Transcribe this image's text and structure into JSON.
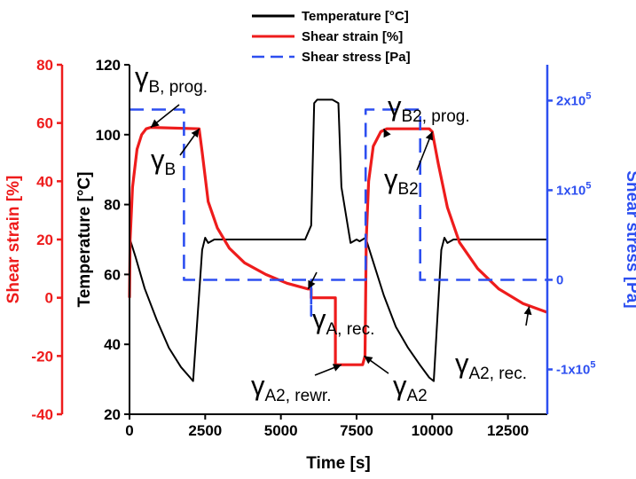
{
  "chart_data": {
    "type": "line",
    "title": "",
    "xlabel": "Time [s]",
    "x_ticks": [
      "0",
      "2500",
      "5000",
      "7500",
      "10000",
      "12500"
    ],
    "xlim": [
      0,
      13800
    ],
    "axes": {
      "temperature": {
        "label": "Temperature [°C]",
        "ticks": [
          "20",
          "40",
          "60",
          "80",
          "100",
          "120"
        ],
        "range": [
          20,
          120
        ],
        "color": "#000000"
      },
      "strain": {
        "label": "Shear strain [%]",
        "ticks": [
          "-40",
          "-20",
          "0",
          "20",
          "40",
          "60",
          "80"
        ],
        "range": [
          -40,
          80
        ],
        "color": "#ee1c1c"
      },
      "stress": {
        "label": "Shear stress [Pa]",
        "ticks": [
          "-1x10",
          "0",
          "1x10",
          "2x10"
        ],
        "tick_exponent": "5",
        "tick_values": [
          -100000,
          0,
          100000,
          200000
        ],
        "range": [
          -150000,
          240000
        ],
        "color": "#2d4ff0"
      }
    },
    "series": [
      {
        "name": "Temperature [°C]",
        "axis": "temperature",
        "color": "#000000",
        "dash": "solid",
        "points": [
          [
            0,
            70.5
          ],
          [
            200,
            65
          ],
          [
            500,
            56
          ],
          [
            900,
            47
          ],
          [
            1300,
            39
          ],
          [
            1700,
            33.5
          ],
          [
            2000,
            30.5
          ],
          [
            2100,
            29.5
          ],
          [
            2400,
            67
          ],
          [
            2500,
            70.5
          ],
          [
            2600,
            69
          ],
          [
            2800,
            70
          ],
          [
            5800,
            70
          ],
          [
            6000,
            74
          ],
          [
            6100,
            109
          ],
          [
            6200,
            110
          ],
          [
            6700,
            110
          ],
          [
            6900,
            109
          ],
          [
            7000,
            85
          ],
          [
            7300,
            69
          ],
          [
            7500,
            70
          ],
          [
            7600,
            69.5
          ],
          [
            7800,
            70.5
          ],
          [
            8000,
            65
          ],
          [
            8400,
            54
          ],
          [
            8800,
            45
          ],
          [
            9200,
            39
          ],
          [
            9600,
            34
          ],
          [
            9900,
            30.5
          ],
          [
            10050,
            29.5
          ],
          [
            10300,
            67
          ],
          [
            10400,
            70.5
          ],
          [
            10500,
            69
          ],
          [
            10700,
            70
          ],
          [
            13800,
            70
          ]
        ]
      },
      {
        "name": "Shear strain [%]",
        "axis": "strain",
        "color": "#ee1c1c",
        "dash": "solid",
        "points": [
          [
            0,
            0
          ],
          [
            20,
            20
          ],
          [
            100,
            38
          ],
          [
            250,
            51
          ],
          [
            400,
            56
          ],
          [
            550,
            58
          ],
          [
            700,
            58.5
          ],
          [
            2300,
            58
          ],
          [
            2400,
            50
          ],
          [
            2600,
            33
          ],
          [
            2900,
            24
          ],
          [
            3300,
            17
          ],
          [
            3800,
            12
          ],
          [
            4500,
            8
          ],
          [
            5200,
            5
          ],
          [
            5900,
            3
          ],
          [
            6000,
            3
          ],
          [
            6000,
            0
          ],
          [
            6800,
            0
          ],
          [
            6800,
            -23
          ],
          [
            7700,
            -23
          ],
          [
            7780,
            -20
          ],
          [
            7820,
            20
          ],
          [
            7900,
            40
          ],
          [
            8050,
            52
          ],
          [
            8300,
            57
          ],
          [
            8500,
            58
          ],
          [
            9900,
            58
          ],
          [
            10000,
            57
          ],
          [
            10200,
            46
          ],
          [
            10500,
            31
          ],
          [
            10900,
            19
          ],
          [
            11500,
            10
          ],
          [
            12200,
            3
          ],
          [
            13000,
            -2
          ],
          [
            13800,
            -5
          ]
        ]
      },
      {
        "name": "Shear stress [Pa]",
        "axis": "stress",
        "color": "#2d4ff0",
        "dash": "dashed",
        "points": [
          [
            0,
            190000
          ],
          [
            1800,
            190000
          ],
          [
            1800,
            0
          ],
          [
            6000,
            0
          ],
          [
            6000,
            -40000
          ],
          [
            6000,
            0
          ],
          [
            7800,
            0
          ],
          [
            7800,
            190000
          ],
          [
            9600,
            190000
          ],
          [
            9600,
            0
          ],
          [
            13800,
            0
          ]
        ]
      }
    ],
    "legend": {
      "placement": "top-center",
      "entries": [
        {
          "label": "Temperature [°C]",
          "color": "#000000",
          "dash": "solid"
        },
        {
          "label": "Shear strain [%]",
          "color": "#ee1c1c",
          "dash": "solid"
        },
        {
          "label": "Shear stress [Pa]",
          "color": "#2d4ff0",
          "dash": "dashed"
        }
      ]
    },
    "annotations": [
      {
        "main": "γ",
        "sub": "B, prog.",
        "target": [
          700,
          58.5
        ]
      },
      {
        "main": "γ",
        "sub": "B",
        "target": [
          2300,
          58
        ]
      },
      {
        "main": "γ",
        "sub": "A, rec.",
        "target": [
          5900,
          3
        ]
      },
      {
        "main": "γ",
        "sub": "A2, rewr.",
        "target": [
          7000,
          -23
        ]
      },
      {
        "main": "γ",
        "sub": "A2",
        "target": [
          7750,
          -20
        ]
      },
      {
        "main": "γ",
        "sub": "B2, prog.",
        "target": [
          8400,
          58
        ]
      },
      {
        "main": "γ",
        "sub": "B2",
        "target": [
          10000,
          57
        ]
      },
      {
        "main": "γ",
        "sub": "A2, rec.",
        "target": [
          13200,
          -3
        ]
      }
    ]
  }
}
